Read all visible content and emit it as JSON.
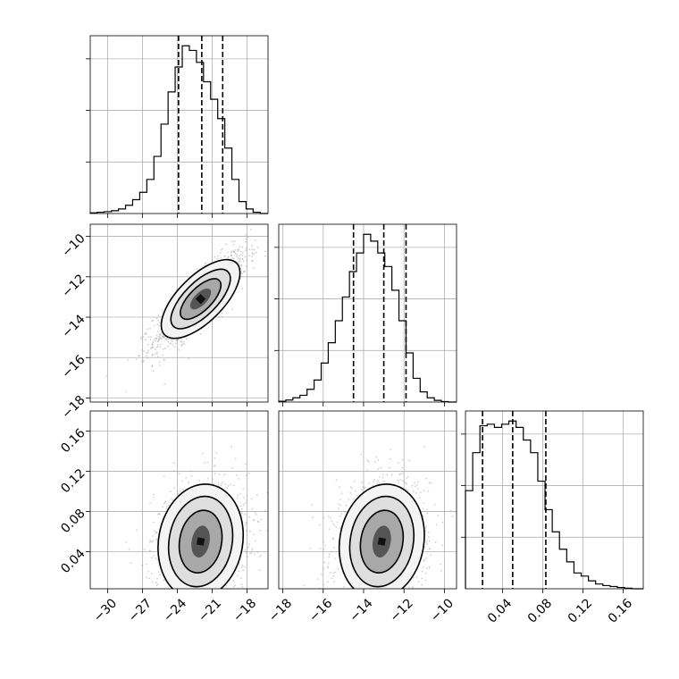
{
  "chart_data": {
    "type": "corner",
    "grid": true,
    "parameters": [
      {
        "id": "p1",
        "range": [
          -31.5,
          -16.2
        ],
        "ticks": [
          -30,
          -27,
          -24,
          -21,
          -18
        ],
        "tick_labels": [
          "−30",
          "−27",
          "−24",
          "−21",
          "−18"
        ],
        "quantiles": [
          -23.9,
          -21.9,
          -20.1
        ],
        "hist": {
          "edges": [
            -31.5,
            -30.9,
            -30.29,
            -29.68,
            -29.07,
            -28.46,
            -27.85,
            -27.24,
            -26.63,
            -26.02,
            -25.41,
            -24.8,
            -24.19,
            -23.58,
            -22.97,
            -22.36,
            -21.75,
            -21.14,
            -20.53,
            -19.92,
            -19.31,
            -18.7,
            -18.09,
            -17.48,
            -16.87,
            -16.2
          ],
          "counts": [
            0.4,
            0.7,
            1.0,
            1.5,
            2.5,
            4.5,
            7.5,
            11.5,
            18.5,
            31,
            48.5,
            66,
            79.5,
            91,
            88.5,
            82,
            71.5,
            62,
            51.5,
            35.5,
            18.5,
            6.5,
            2.5,
            0.7,
            0
          ]
        }
      },
      {
        "id": "p2",
        "range": [
          -18.2,
          -9.4
        ],
        "ticks": [
          -18,
          -16,
          -14,
          -12,
          -10
        ],
        "tick_labels": [
          "−18",
          "−16",
          "−14",
          "−12",
          "−10"
        ],
        "quantiles": [
          -14.5,
          -13.0,
          -11.9
        ],
        "hist": {
          "edges": [
            -18.2,
            -17.85,
            -17.5,
            -17.15,
            -16.8,
            -16.45,
            -16.1,
            -15.75,
            -15.4,
            -15.05,
            -14.7,
            -14.35,
            -14.0,
            -13.65,
            -13.3,
            -12.95,
            -12.6,
            -12.25,
            -11.9,
            -11.55,
            -11.2,
            -10.85,
            -10.5,
            -10.15,
            -9.8,
            -9.4
          ],
          "counts": [
            0.5,
            1.2,
            2.5,
            4.0,
            7.5,
            13.0,
            23.0,
            35.0,
            48.0,
            62.0,
            77.0,
            88.0,
            99.0,
            95.0,
            88.0,
            80.0,
            66.0,
            48.0,
            29.0,
            14.0,
            6.0,
            2.5,
            1.0,
            0.3,
            0
          ]
        }
      },
      {
        "id": "p3",
        "range": [
          0.003,
          0.18
        ],
        "ticks": [
          0.04,
          0.08,
          0.12,
          0.16
        ],
        "tick_labels": [
          "0.04",
          "0.08",
          "0.12",
          "0.16"
        ],
        "quantiles": [
          0.02,
          0.05,
          0.083
        ],
        "hist": {
          "edges": [
            0.003,
            0.0102,
            0.0174,
            0.0246,
            0.0318,
            0.039,
            0.0462,
            0.0534,
            0.0606,
            0.0678,
            0.075,
            0.0822,
            0.0894,
            0.0966,
            0.1038,
            0.111,
            0.1182,
            0.1254,
            0.1326,
            0.1398,
            0.147,
            0.1542,
            0.1614,
            0.1686,
            0.18
          ],
          "counts": [
            31,
            43,
            51.5,
            52,
            51,
            52,
            53,
            51,
            47,
            43,
            34,
            25,
            18,
            12.5,
            8.5,
            5,
            4,
            2.5,
            1.5,
            1,
            0.7,
            0.4,
            0.2,
            0
          ]
        }
      }
    ],
    "pairs": [
      {
        "x": "p1",
        "y": "p2",
        "center": [
          -22.0,
          -13.1
        ],
        "corr": 0.85
      },
      {
        "x": "p1",
        "y": "p3",
        "center": [
          -22.0,
          0.05
        ],
        "corr": 0.15
      },
      {
        "x": "p2",
        "y": "p3",
        "center": [
          -13.1,
          0.05
        ],
        "corr": 0.15
      }
    ]
  }
}
